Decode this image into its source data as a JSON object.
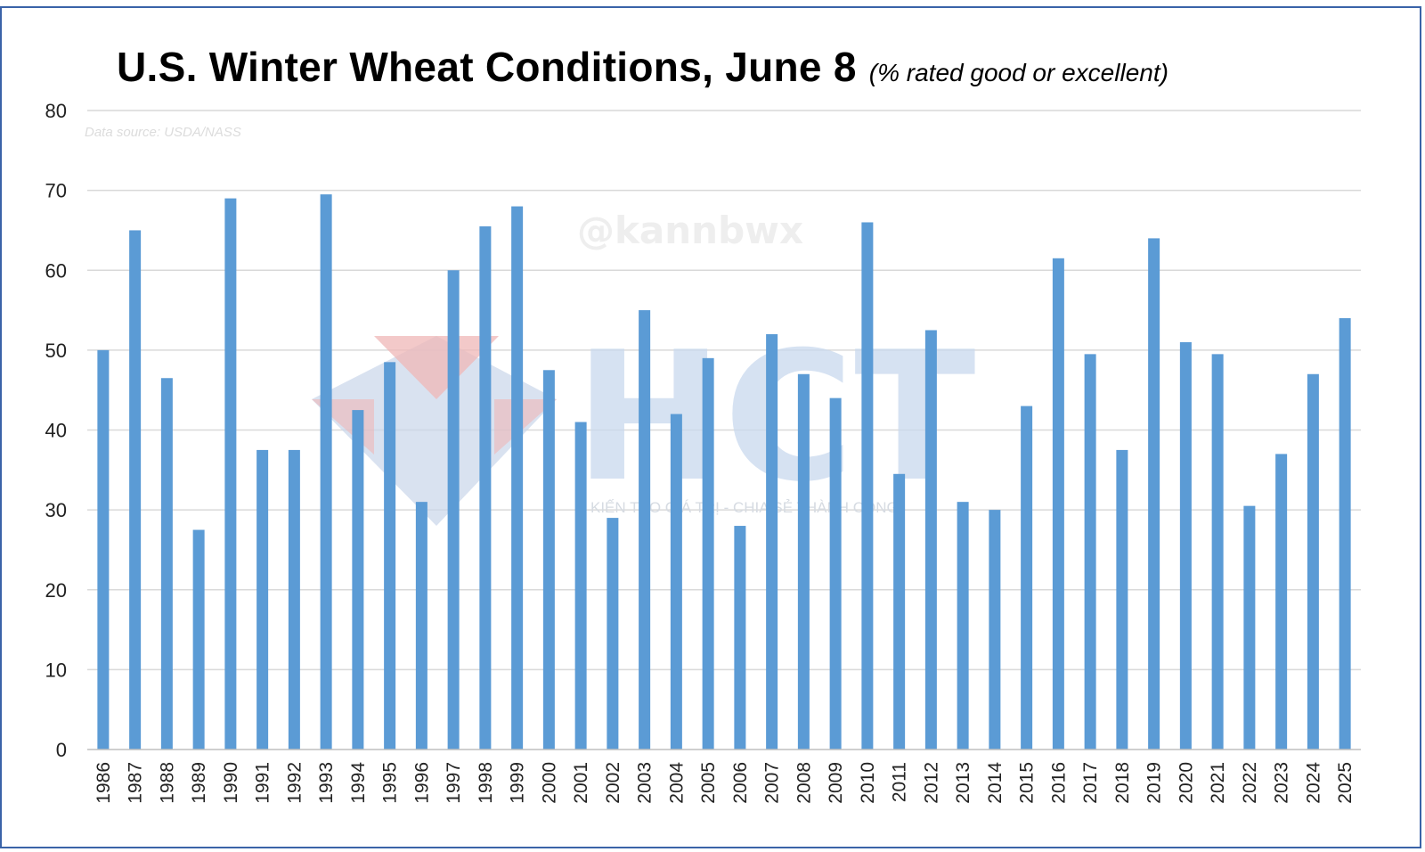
{
  "title": "U.S. Winter Wheat Conditions, June 8",
  "subtitle": "(% rated good or excellent)",
  "source_note": "Data source: USDA/NASS",
  "watermark_handle": "@kannbwx",
  "watermark_logo": "HCT",
  "watermark_tagline": "KIẾN TẠO GIÁ TRỊ - CHIA SẺ THÀNH CÔNG",
  "colors": {
    "bar": "#5b9bd5",
    "grid": "#d9d9d9",
    "frame": "#3a63a8"
  },
  "chart_data": {
    "type": "bar",
    "title": "U.S. Winter Wheat Conditions, June 8",
    "subtitle": "(% rated good or excellent)",
    "xlabel": "",
    "ylabel": "",
    "ylim": [
      0,
      80
    ],
    "yticks": [
      0,
      10,
      20,
      30,
      40,
      50,
      60,
      70,
      80
    ],
    "grid": true,
    "categories": [
      "1986",
      "1987",
      "1988",
      "1989",
      "1990",
      "1991",
      "1992",
      "1993",
      "1994",
      "1995",
      "1996",
      "1997",
      "1998",
      "1999",
      "2000",
      "2001",
      "2002",
      "2003",
      "2004",
      "2005",
      "2006",
      "2007",
      "2008",
      "2009",
      "2010",
      "2011",
      "2012",
      "2013",
      "2014",
      "2015",
      "2016",
      "2017",
      "2018",
      "2019",
      "2020",
      "2021",
      "2022",
      "2023",
      "2024",
      "2025"
    ],
    "values": [
      50,
      65,
      46.5,
      27.5,
      69,
      37.5,
      37.5,
      69.5,
      42.5,
      48.5,
      31,
      60,
      65.5,
      68,
      47.5,
      41,
      29,
      55,
      42,
      49,
      28,
      52,
      47,
      44,
      66,
      34.5,
      52.5,
      31,
      30,
      43,
      61.5,
      49.5,
      37.5,
      64,
      51,
      49.5,
      30.5,
      37,
      47,
      54
    ]
  }
}
